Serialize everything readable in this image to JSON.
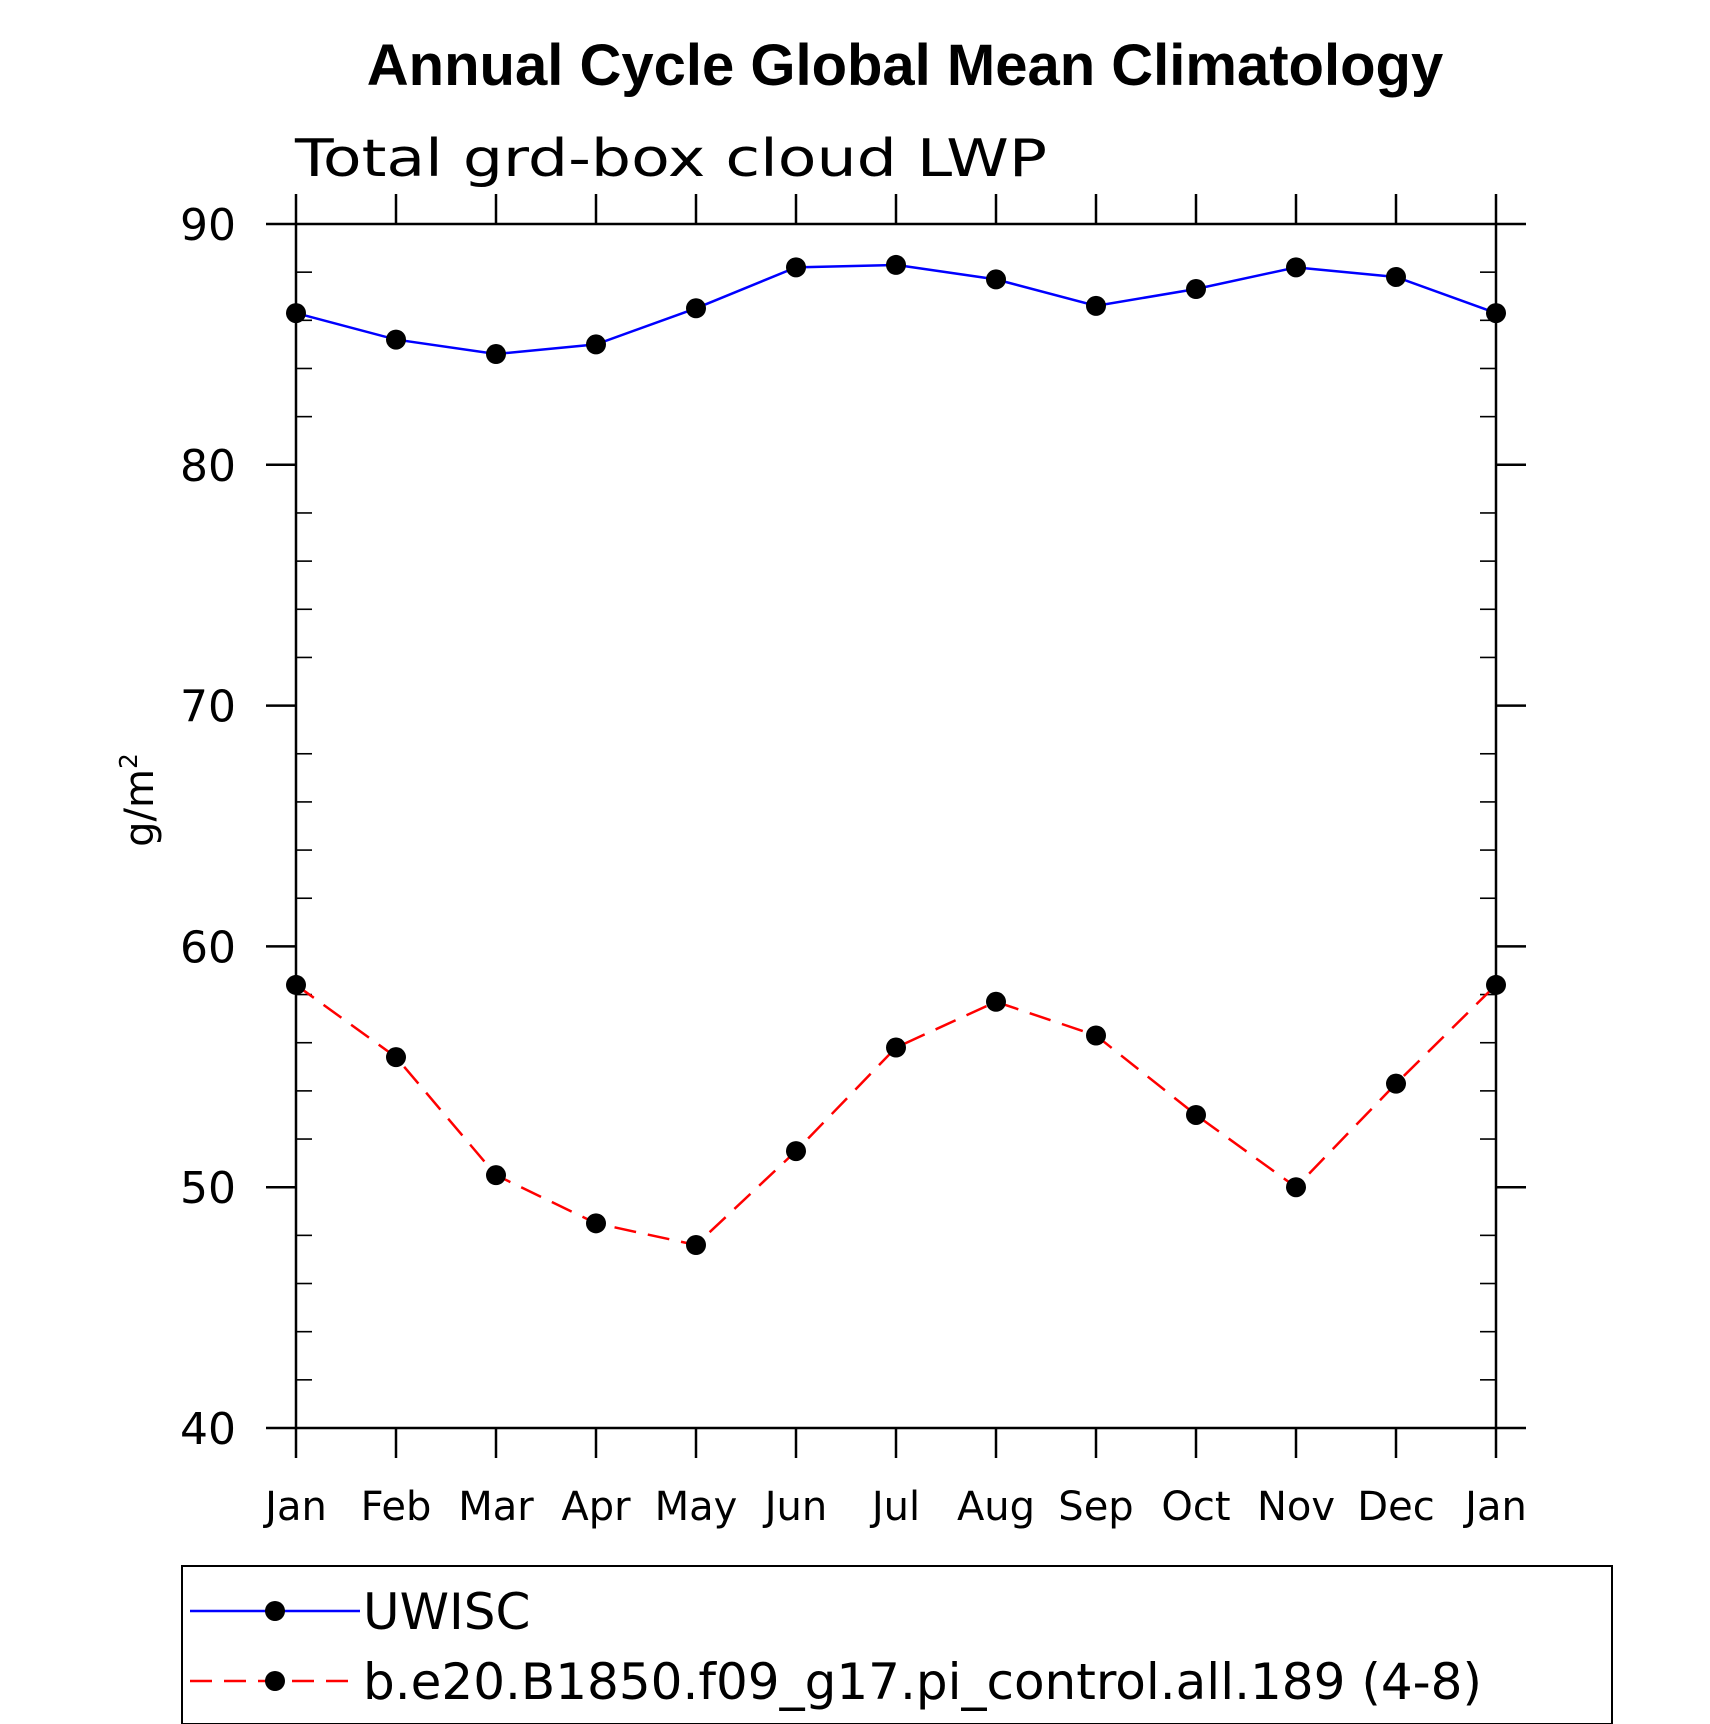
{
  "chart_data": {
    "type": "line",
    "title": "Annual Cycle Global Mean Climatology",
    "subtitle": "Total grd-box cloud LWP",
    "xlabel": "",
    "ylabel": "g/m",
    "ylabel_superscript": "2",
    "categories": [
      "Jan",
      "Feb",
      "Mar",
      "Apr",
      "May",
      "Jun",
      "Jul",
      "Aug",
      "Sep",
      "Oct",
      "Nov",
      "Dec",
      "Jan"
    ],
    "ylim": [
      40,
      90
    ],
    "yticks": [
      40,
      50,
      60,
      70,
      80,
      90
    ],
    "yminor_step": 2,
    "grid": false,
    "legend_position": "bottom",
    "series": [
      {
        "name": "UWISC",
        "color": "#0000ff",
        "dashed": false,
        "marker": "filled-circle",
        "values": [
          86.3,
          85.2,
          84.6,
          85.0,
          86.5,
          88.2,
          88.3,
          87.7,
          86.6,
          87.3,
          88.2,
          87.8,
          86.3
        ]
      },
      {
        "name": "b.e20.B1850.f09_g17.pi_control.all.189 (4-8)",
        "color": "#ff0000",
        "dashed": true,
        "marker": "filled-circle",
        "values": [
          58.4,
          55.4,
          50.5,
          48.5,
          47.6,
          51.5,
          55.8,
          57.7,
          56.3,
          53.0,
          50.0,
          54.3,
          58.4
        ]
      }
    ]
  }
}
